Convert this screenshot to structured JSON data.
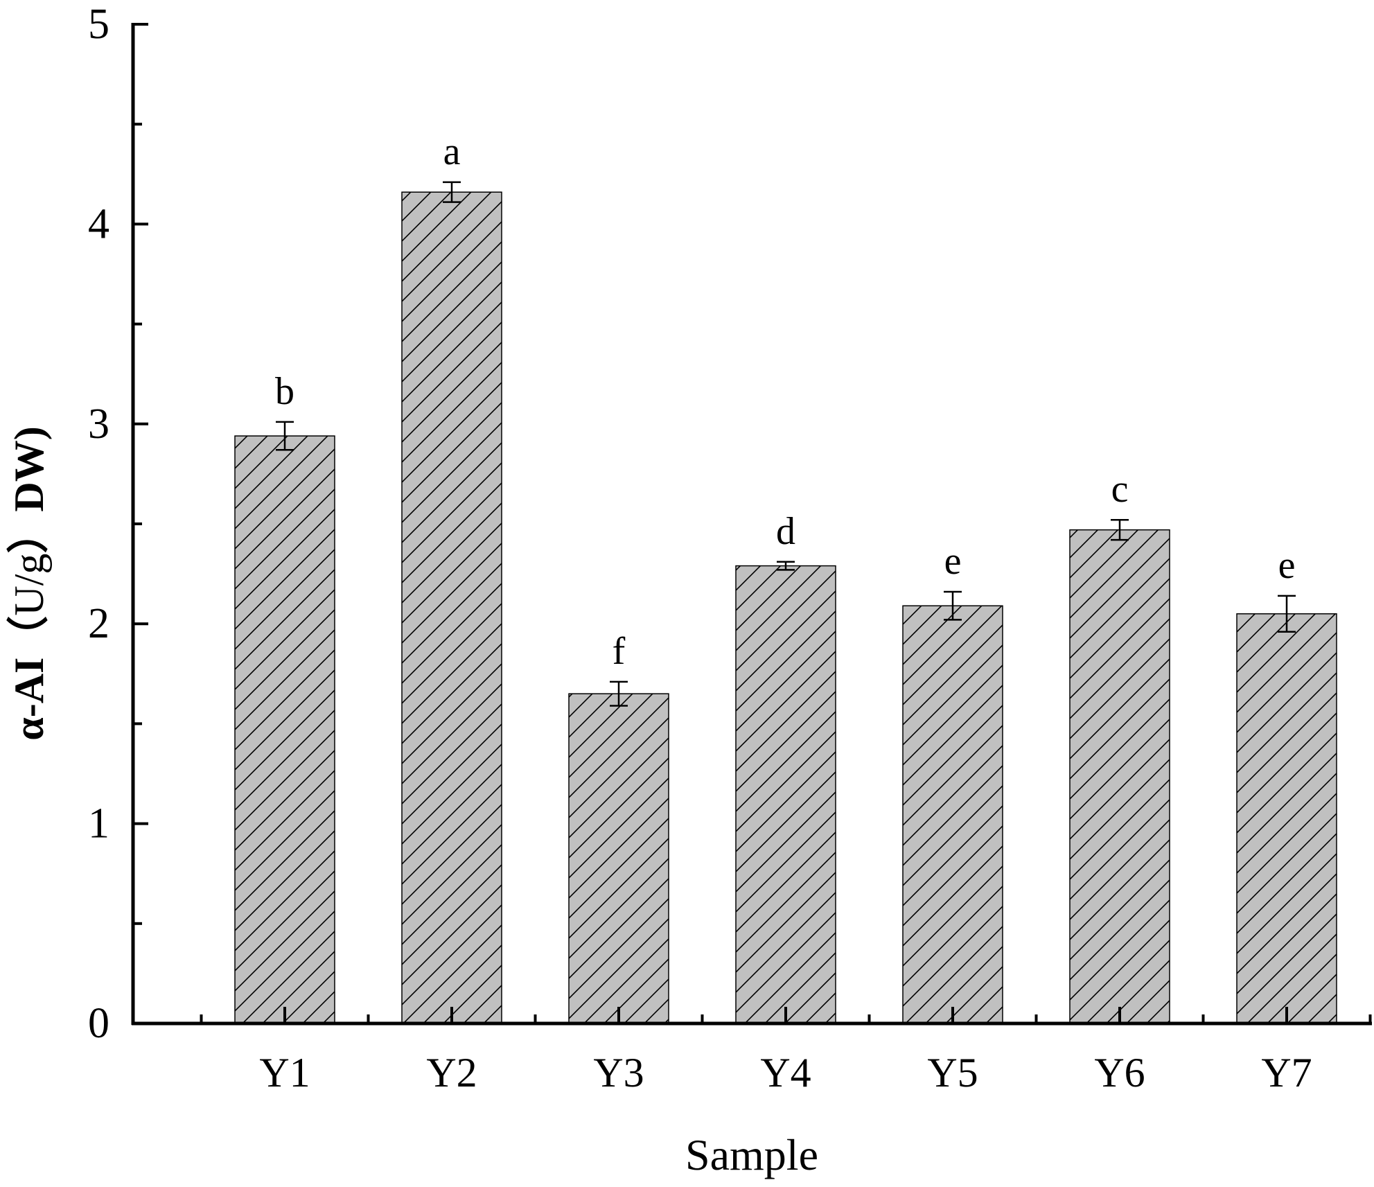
{
  "chart_data": {
    "type": "bar",
    "title": "",
    "xlabel": "Sample",
    "ylabel": "α-AI（U/g）DW)",
    "ylabel_prefix": "α-AI（",
    "ylabel_unit": "U/g",
    "ylabel_suffix": "）DW)",
    "categories": [
      "Y1",
      "Y2",
      "Y3",
      "Y4",
      "Y5",
      "Y6",
      "Y7"
    ],
    "values": [
      2.94,
      4.16,
      1.65,
      2.29,
      2.09,
      2.47,
      2.05
    ],
    "errors": [
      0.07,
      0.05,
      0.06,
      0.02,
      0.07,
      0.05,
      0.09
    ],
    "significance_labels": [
      "b",
      "a",
      "f",
      "d",
      "e",
      "c",
      "e"
    ],
    "ylim": [
      0,
      5
    ],
    "yticks": [
      "0",
      "1",
      "2",
      "3",
      "4",
      "5"
    ],
    "grid": false,
    "legend": "none",
    "bar_fill": "#c0c0c0",
    "bar_hatch": "diagonal",
    "hatch_color": "#000000"
  }
}
